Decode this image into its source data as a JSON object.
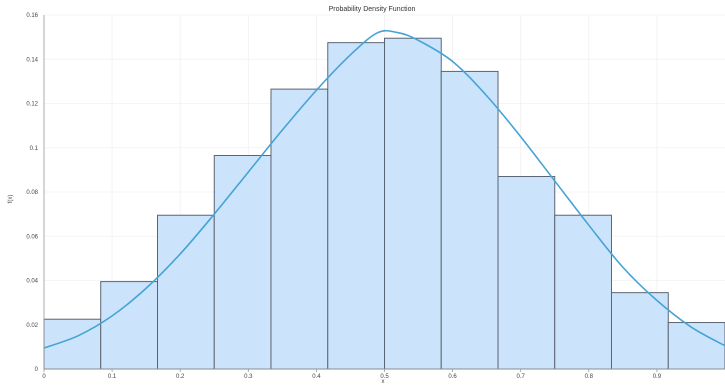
{
  "chart_data": {
    "type": "histogram",
    "title": "Probability Density Function",
    "xlabel": "x",
    "ylabel": "f(x)",
    "xlim": [
      0,
      1
    ],
    "ylim": [
      0,
      0.16
    ],
    "xticks": [
      "0",
      "0.1",
      "0.2",
      "0.3",
      "0.4",
      "0.5",
      "0.6",
      "0.7",
      "0.8",
      "0.9"
    ],
    "yticks": [
      "0",
      "0.02",
      "0.04",
      "0.06",
      "0.08",
      "0.1",
      "0.12",
      "0.14",
      "0.16"
    ],
    "grid": true,
    "bins": [
      {
        "x0": 0.0,
        "x1": 0.0833,
        "value": 0.0225
      },
      {
        "x0": 0.0833,
        "x1": 0.1667,
        "value": 0.0395
      },
      {
        "x0": 0.1667,
        "x1": 0.25,
        "value": 0.0695
      },
      {
        "x0": 0.25,
        "x1": 0.3333,
        "value": 0.0965
      },
      {
        "x0": 0.3333,
        "x1": 0.4167,
        "value": 0.1265
      },
      {
        "x0": 0.4167,
        "x1": 0.5,
        "value": 0.1475
      },
      {
        "x0": 0.5,
        "x1": 0.5833,
        "value": 0.1495
      },
      {
        "x0": 0.5833,
        "x1": 0.6667,
        "value": 0.1345
      },
      {
        "x0": 0.6667,
        "x1": 0.75,
        "value": 0.087
      },
      {
        "x0": 0.75,
        "x1": 0.8333,
        "value": 0.0695
      },
      {
        "x0": 0.8333,
        "x1": 0.9167,
        "value": 0.0345
      },
      {
        "x0": 0.9167,
        "x1": 1.0,
        "value": 0.021
      }
    ],
    "curve": {
      "x": [
        0.0,
        0.05,
        0.1,
        0.15,
        0.2,
        0.25,
        0.3,
        0.35,
        0.4,
        0.45,
        0.49,
        0.52,
        0.55,
        0.6,
        0.65,
        0.7,
        0.75,
        0.8,
        0.85,
        0.9,
        0.95,
        1.0
      ],
      "y": [
        0.0095,
        0.015,
        0.024,
        0.0365,
        0.052,
        0.07,
        0.089,
        0.108,
        0.126,
        0.142,
        0.152,
        0.152,
        0.1485,
        0.139,
        0.1235,
        0.105,
        0.085,
        0.065,
        0.046,
        0.031,
        0.019,
        0.0105
      ]
    },
    "colors": {
      "bar_fill": "#cce4fb",
      "bar_stroke": "#5a6573",
      "curve": "#45a3d6"
    }
  }
}
